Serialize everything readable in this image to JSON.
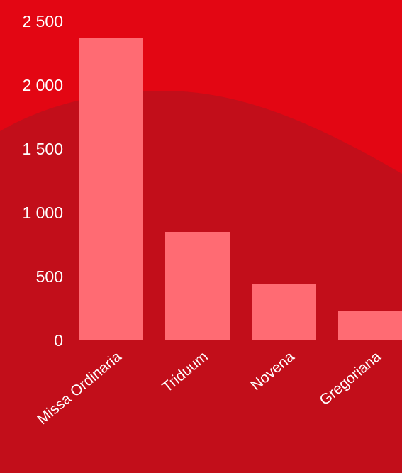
{
  "colors": {
    "background": "#e30613",
    "wave": "#c20e1a",
    "bar": "#ff6b73",
    "text": "#ffffff"
  },
  "chart_data": {
    "type": "bar",
    "categories": [
      "Missa Ordinaria",
      "Triduum",
      "Novena",
      "Gregoriana"
    ],
    "values": [
      2370,
      850,
      440,
      230
    ],
    "ylim": [
      0,
      2500
    ],
    "yticks": [
      0,
      500,
      1000,
      1500,
      2000,
      2500
    ],
    "ytick_labels": [
      "0",
      "500",
      "1 000",
      "1 500",
      "2 000",
      "2 500"
    ],
    "grid": false,
    "legend": "none"
  }
}
